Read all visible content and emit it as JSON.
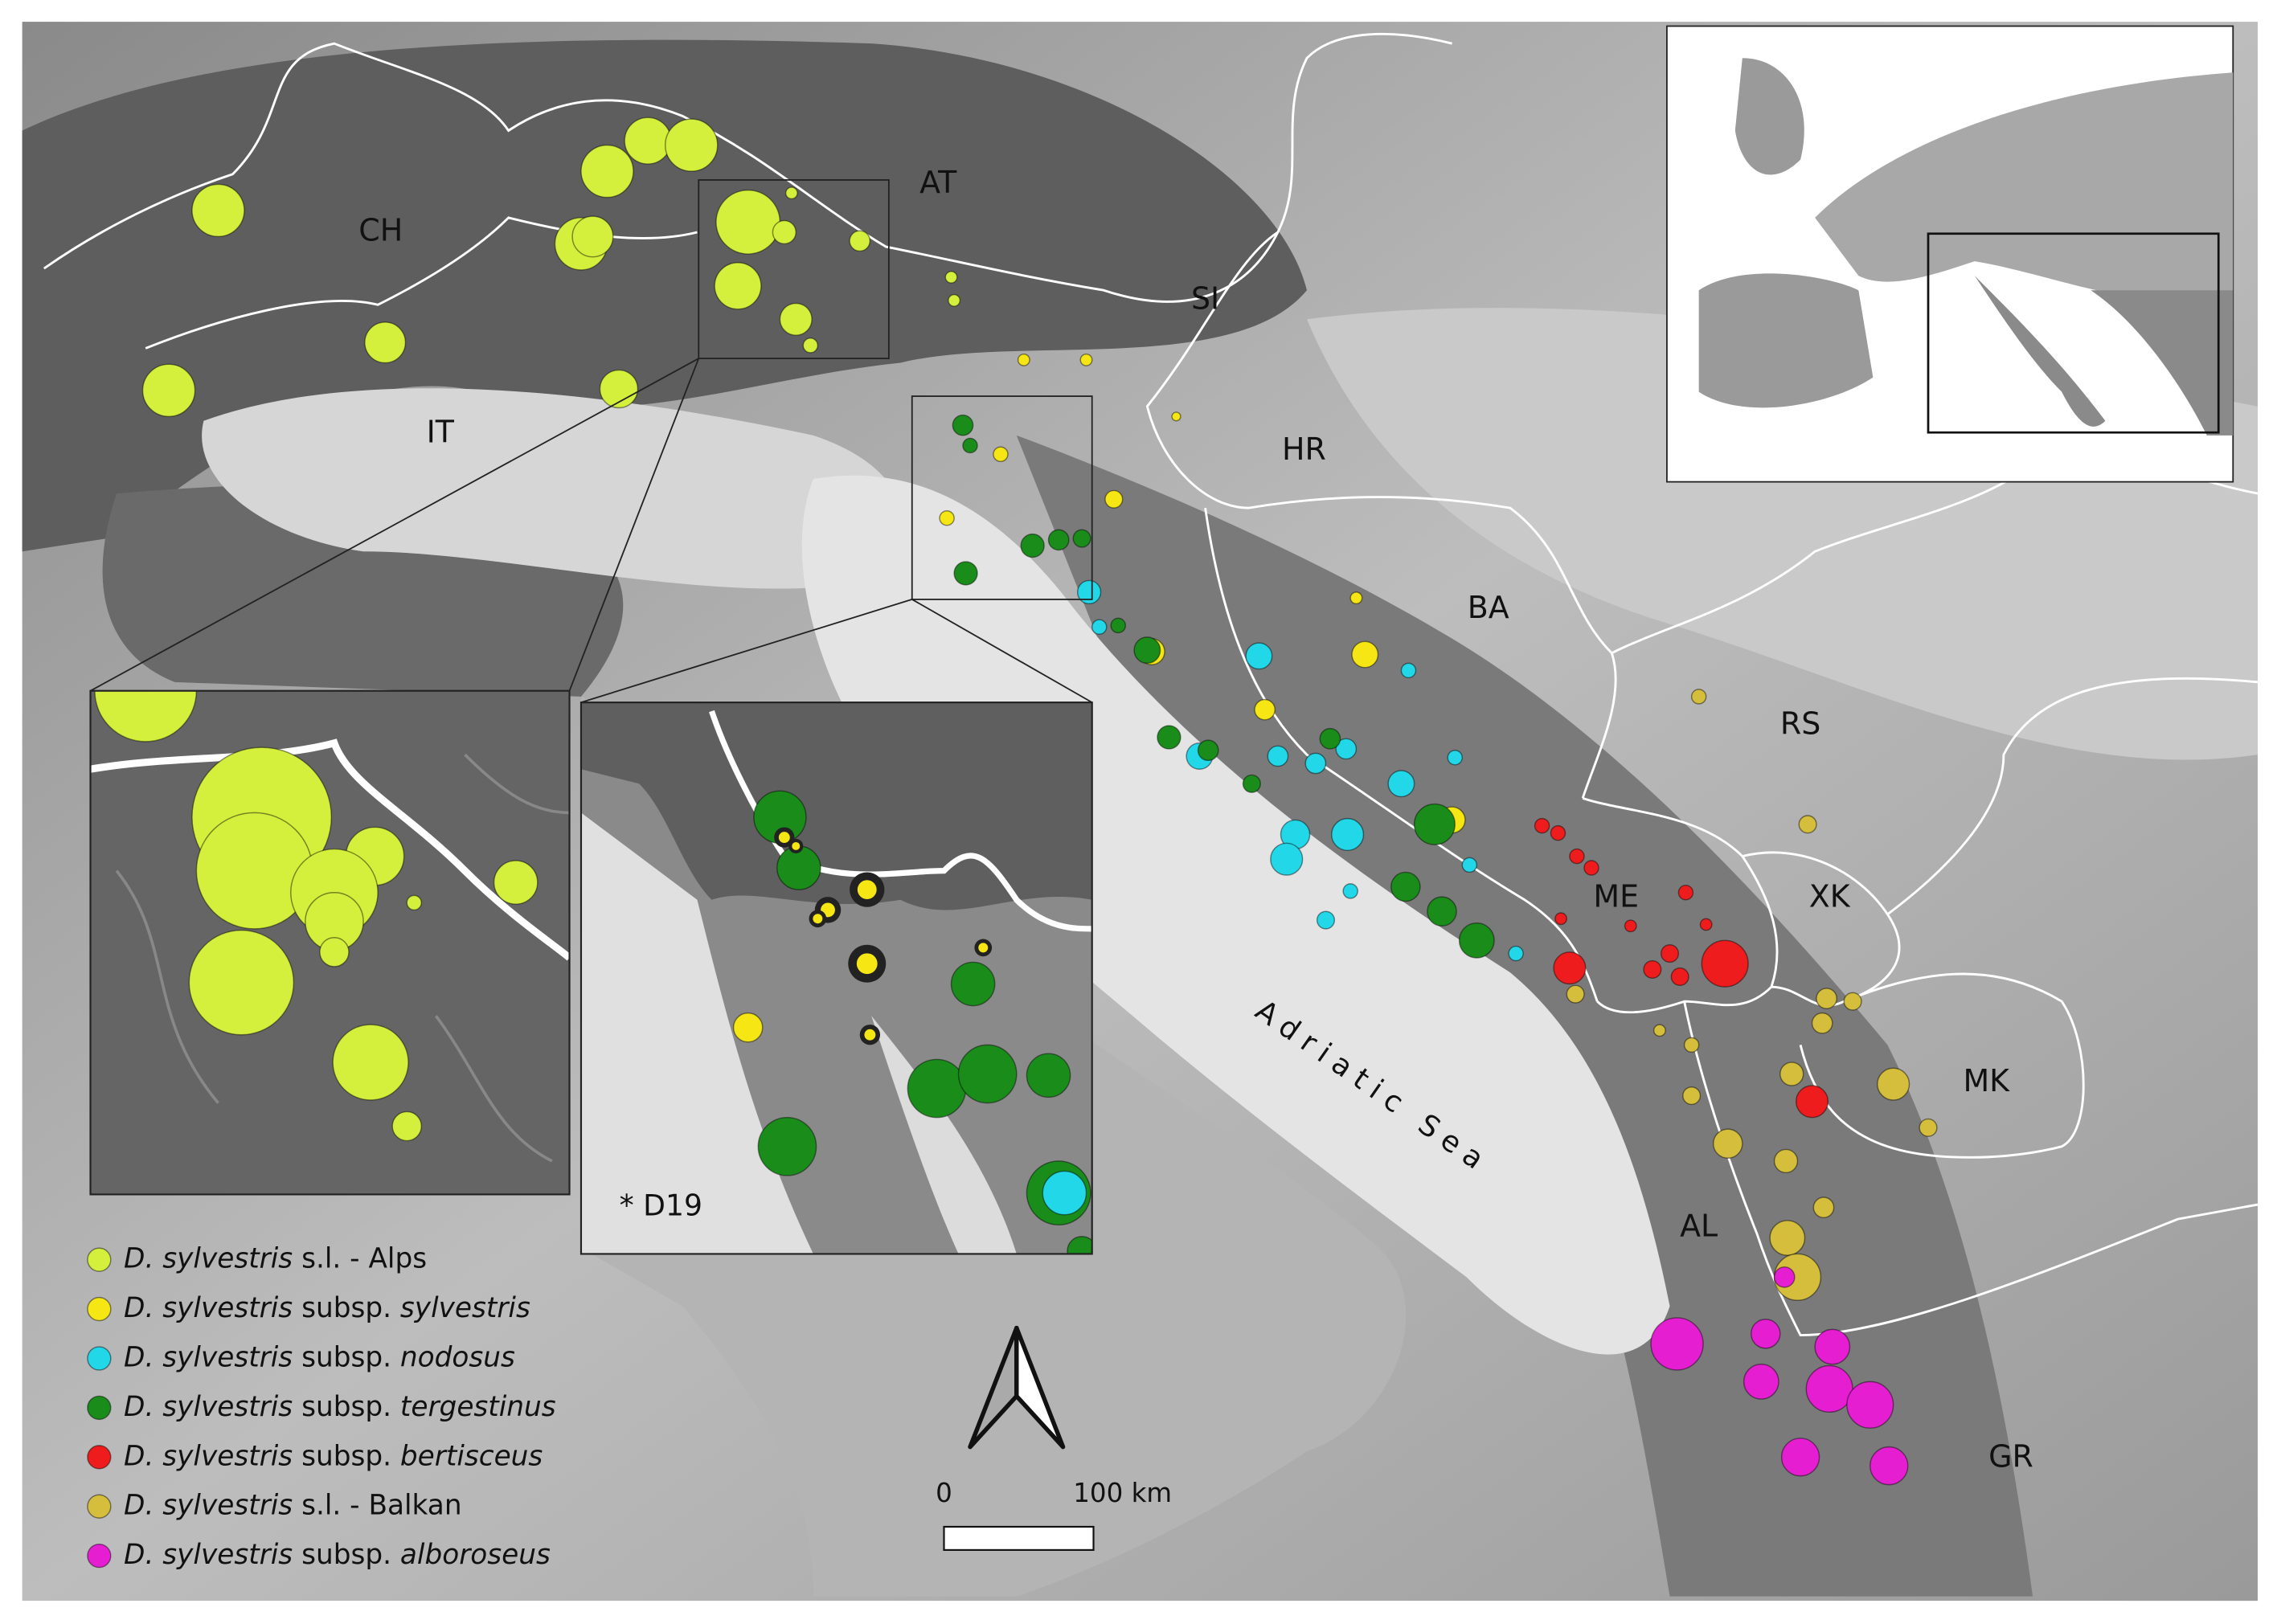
{
  "map": {
    "country_labels": [
      "CH",
      "AT",
      "SI",
      "IT",
      "HR",
      "BA",
      "RS",
      "ME",
      "XK",
      "MK",
      "AL",
      "GR"
    ],
    "sea_label": "Adriatic Sea",
    "inset_note": "* D19",
    "scale": {
      "start": "0",
      "end": "100 km"
    },
    "legend": [
      {
        "species": "D. sylvestris",
        "text": "s.l. - Alps",
        "color": "#d4f03c"
      },
      {
        "species": "D. sylvestris",
        "text": "subsp.",
        "epithet": "sylvestris",
        "color": "#f5e614"
      },
      {
        "species": "D. sylvestris",
        "text": "subsp.",
        "epithet": "nodosus",
        "color": "#22d8e8"
      },
      {
        "species": "D. sylvestris",
        "text": "subsp.",
        "epithet": "tergestinus",
        "color": "#1a8c1a"
      },
      {
        "species": "D. sylvestris",
        "text": "subsp.",
        "epithet": "bertisceus",
        "color": "#ee1c1c"
      },
      {
        "species": "D. sylvestris",
        "text": "s.l. - Balkan",
        "color": "#d4be3c"
      },
      {
        "species": "D. sylvestris",
        "text": "subsp.",
        "epithet": "alboroseus",
        "color": "#e61ed2"
      }
    ]
  }
}
